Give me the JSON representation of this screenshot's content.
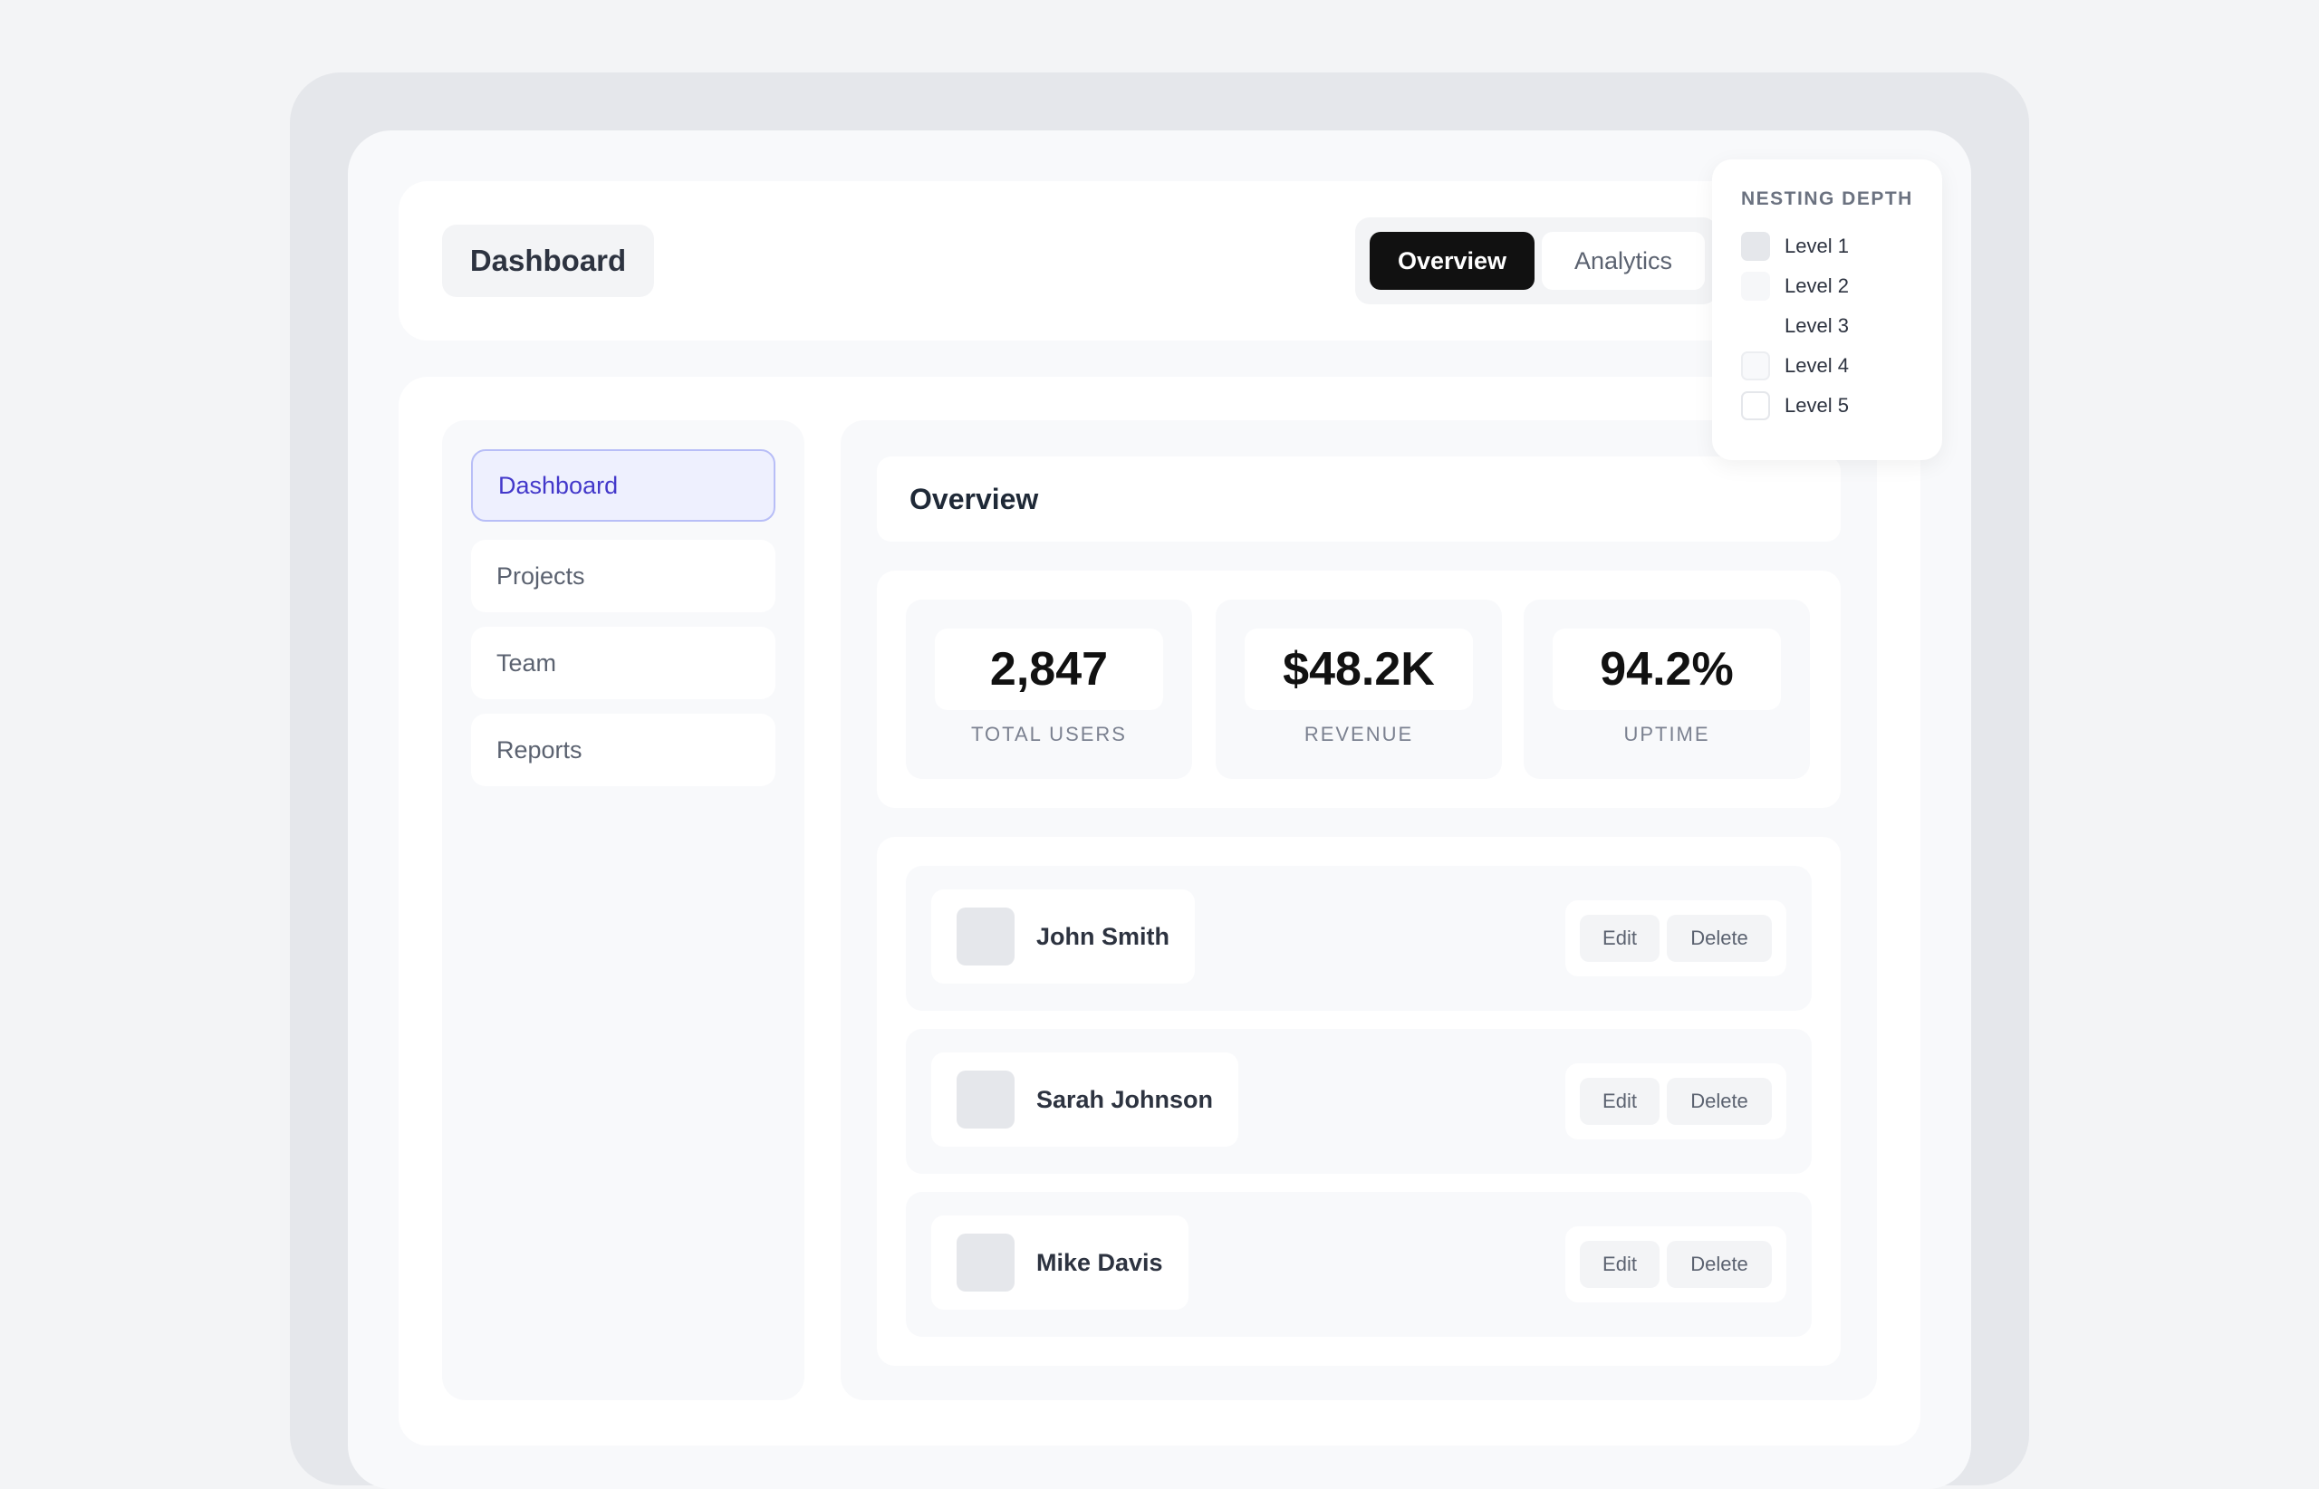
{
  "header": {
    "title": "Dashboard",
    "tabs": [
      {
        "label": "Overview",
        "active": true
      },
      {
        "label": "Analytics",
        "active": false
      }
    ]
  },
  "sidebar": {
    "items": [
      {
        "label": "Dashboard",
        "active": true
      },
      {
        "label": "Projects",
        "active": false
      },
      {
        "label": "Team",
        "active": false
      },
      {
        "label": "Reports",
        "active": false
      }
    ]
  },
  "main": {
    "section_title": "Overview",
    "stats": [
      {
        "value": "2,847",
        "label": "TOTAL USERS"
      },
      {
        "value": "$48.2K",
        "label": "REVENUE"
      },
      {
        "value": "94.2%",
        "label": "UPTIME"
      }
    ],
    "users": [
      {
        "name": "John Smith",
        "edit_label": "Edit",
        "delete_label": "Delete"
      },
      {
        "name": "Sarah Johnson",
        "edit_label": "Edit",
        "delete_label": "Delete"
      },
      {
        "name": "Mike Davis",
        "edit_label": "Edit",
        "delete_label": "Delete"
      }
    ]
  },
  "nesting_panel": {
    "title": "NESTING DEPTH",
    "levels": [
      {
        "label": "Level 1",
        "color": "#e5e7eb"
      },
      {
        "label": "Level 2",
        "color": "#f3f4f6"
      },
      {
        "label": "Level 3",
        "color": "#ffffff"
      },
      {
        "label": "Level 4",
        "color": "#f8f9fb"
      },
      {
        "label": "Level 5",
        "color": "#ffffff"
      }
    ]
  }
}
